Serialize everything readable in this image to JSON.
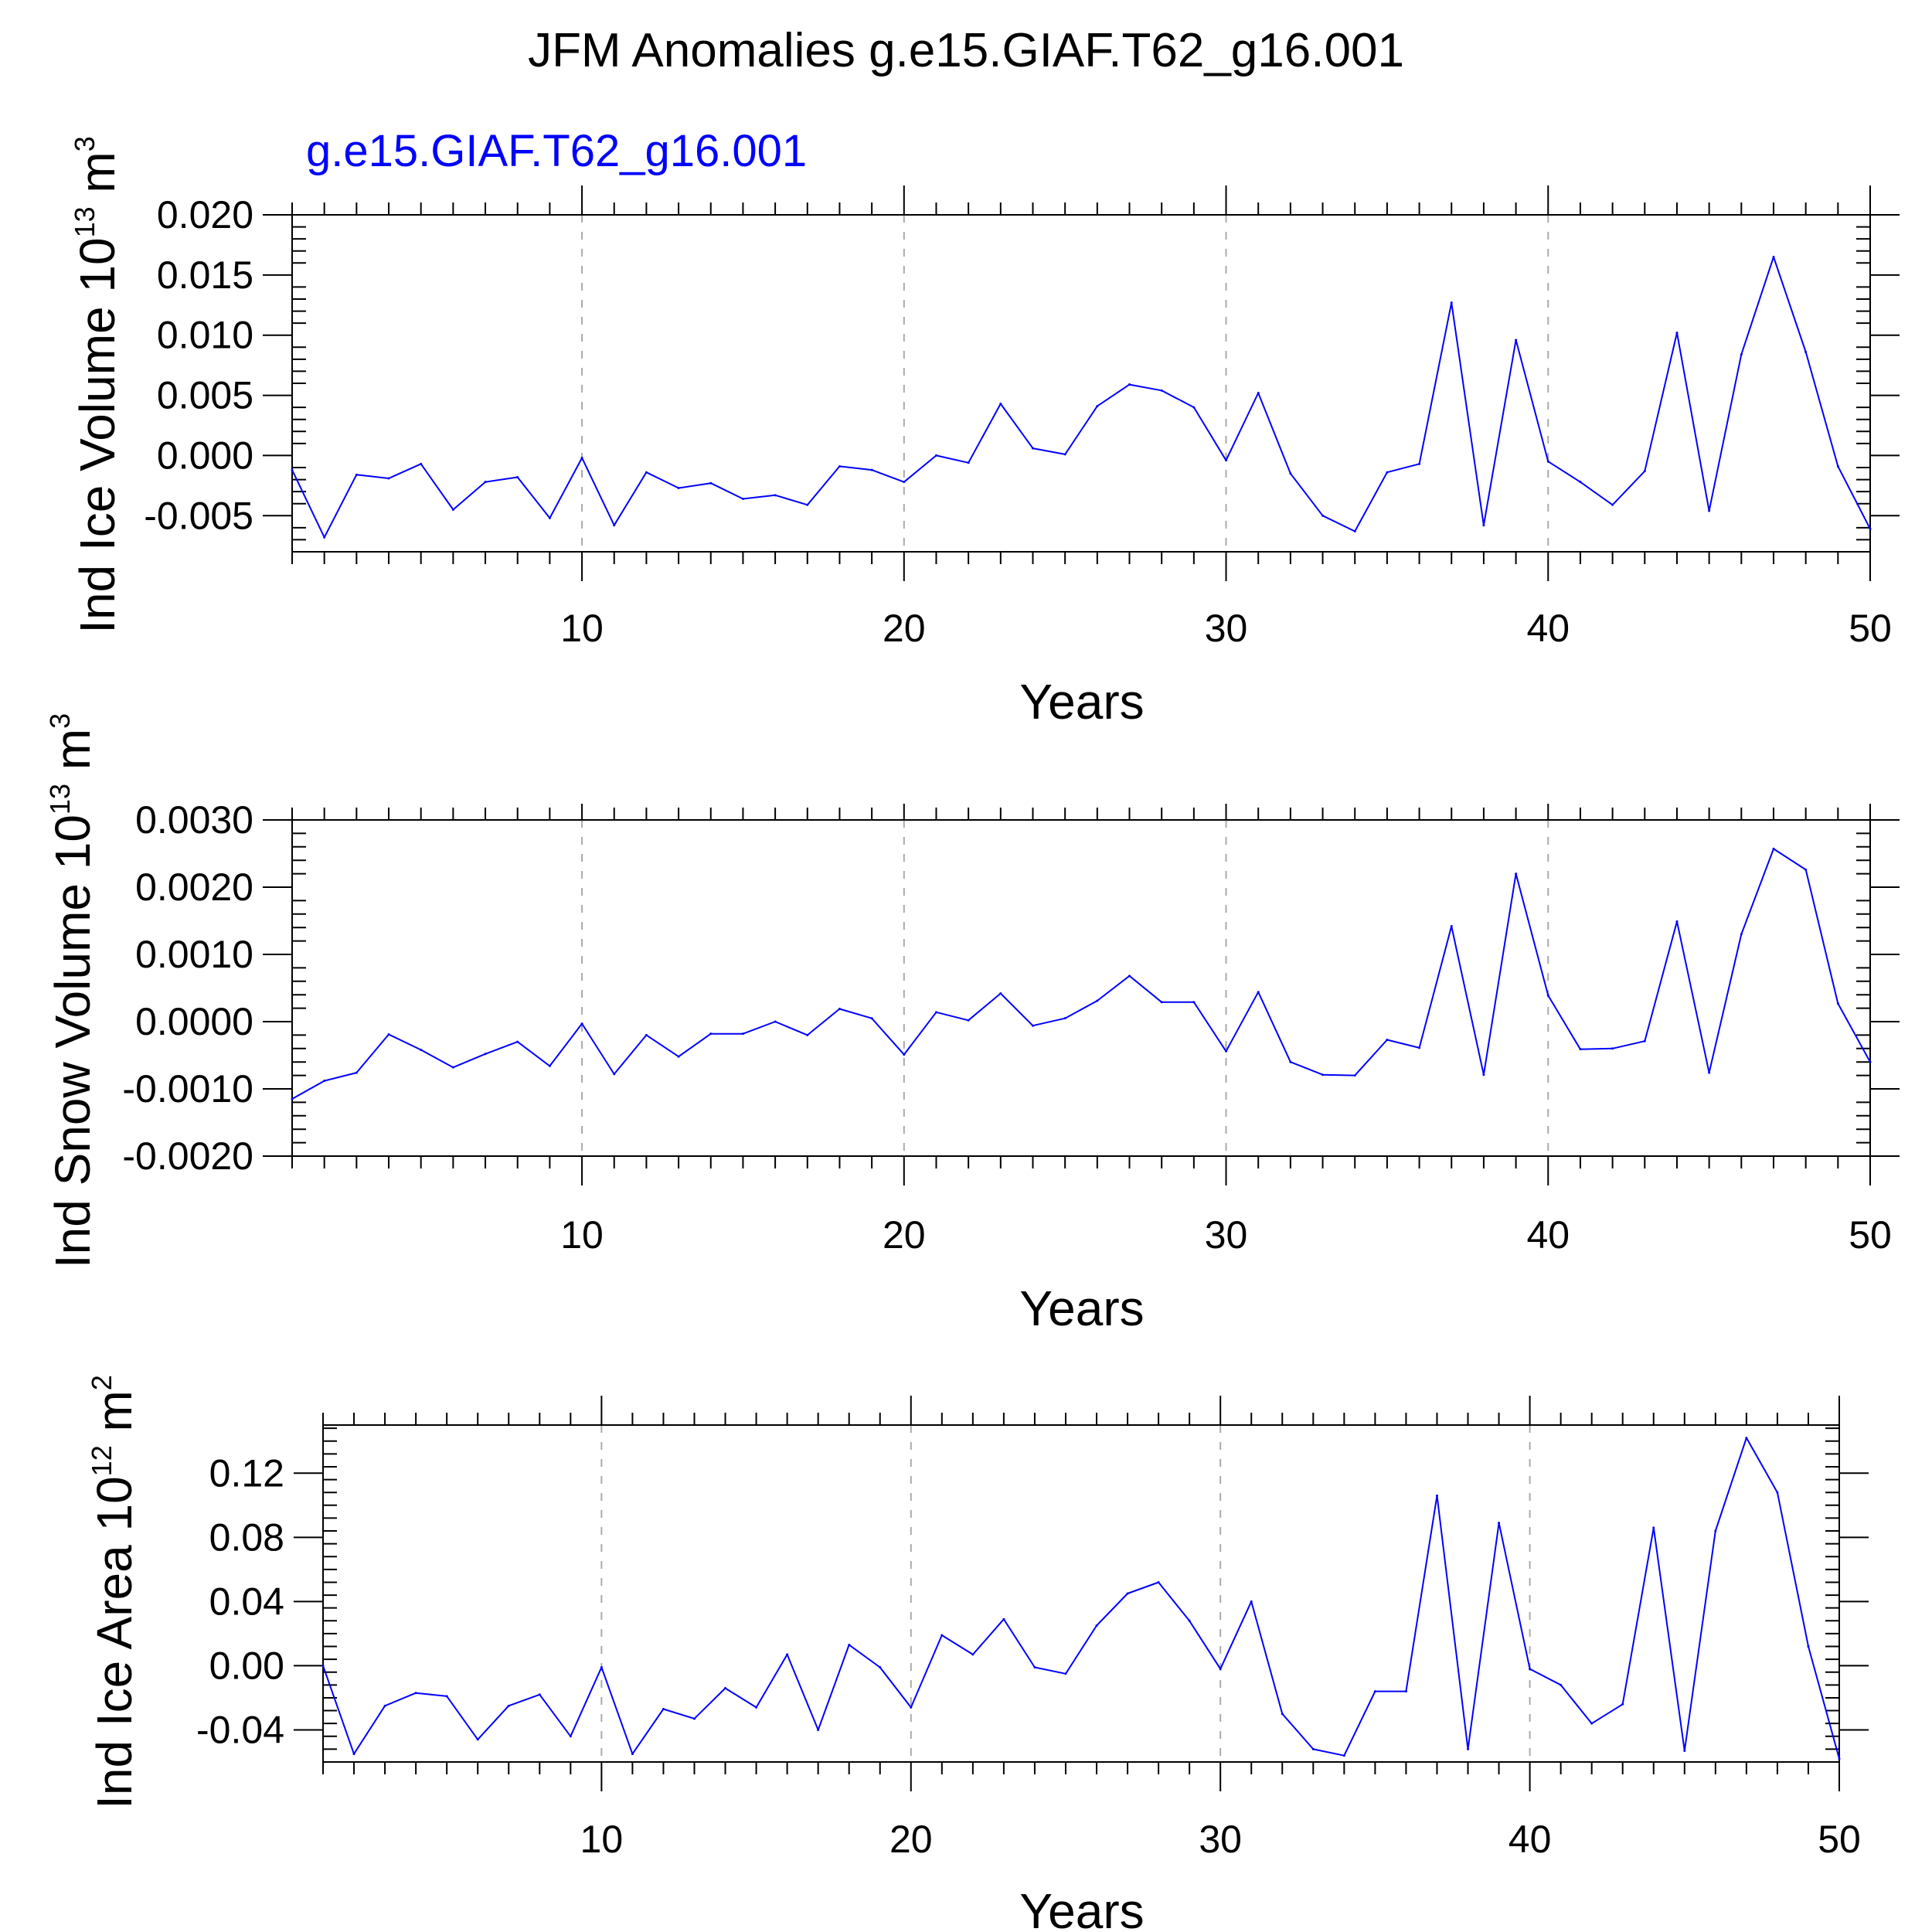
{
  "title": "JFM Anomalies g.e15.GIAF.T62_g16.001",
  "colors": {
    "line": "#0000ff",
    "subtitle": "#0000ff",
    "axis": "#000000",
    "grid": "#aaaaaa"
  },
  "panels": [
    {
      "subtitle": "g.e15.GIAF.T62_g16.001",
      "ylabel_main": "Ind Ice Volume 10",
      "ylabel_exp": "13",
      "ylabel_unit": " m",
      "ylabel_unit_exp": "3",
      "xlabel": "Years"
    },
    {
      "subtitle": "",
      "ylabel_main": "Ind Snow Volume 10",
      "ylabel_exp": "13",
      "ylabel_unit": " m",
      "ylabel_unit_exp": "3",
      "xlabel": "Years"
    },
    {
      "subtitle": "",
      "ylabel_main": "Ind Ice Area 10",
      "ylabel_exp": "12",
      "ylabel_unit": " m",
      "ylabel_unit_exp": "2",
      "xlabel": "Years"
    }
  ],
  "chart_data": [
    {
      "type": "line",
      "title": "g.e15.GIAF.T62_g16.001",
      "xlabel": "Years",
      "ylabel": "Ind Ice Volume 10^13 m^3",
      "xlim": [
        1,
        50
      ],
      "ylim": [
        -0.008,
        0.02
      ],
      "xticks": [
        10,
        20,
        30,
        40,
        50
      ],
      "yticks": [
        -0.005,
        0.0,
        0.005,
        0.01,
        0.015,
        0.02
      ],
      "ytick_labels": [
        "-0.005",
        "0.000",
        "0.005",
        "0.010",
        "0.015",
        "0.020"
      ],
      "grid": "vertical dashed at x ticks",
      "x": [
        1,
        2,
        3,
        4,
        5,
        6,
        7,
        8,
        9,
        10,
        11,
        12,
        13,
        14,
        15,
        16,
        17,
        18,
        19,
        20,
        21,
        22,
        23,
        24,
        25,
        26,
        27,
        28,
        29,
        30,
        31,
        32,
        33,
        34,
        35,
        36,
        37,
        38,
        39,
        40,
        41,
        42,
        43,
        44,
        45,
        46,
        47,
        48,
        49,
        50
      ],
      "values": [
        -0.0012,
        -0.0068,
        -0.0016,
        -0.0019,
        -0.0007,
        -0.0045,
        -0.0022,
        -0.0018,
        -0.0052,
        -0.0002,
        -0.0058,
        -0.0014,
        -0.0027,
        -0.0023,
        -0.0036,
        -0.0033,
        -0.0041,
        -0.0009,
        -0.0012,
        -0.0022,
        0.0,
        -0.0006,
        0.0043,
        0.0006,
        0.0001,
        0.0041,
        0.0059,
        0.0054,
        0.004,
        -0.0004,
        0.0052,
        -0.0015,
        -0.005,
        -0.0063,
        -0.0014,
        -0.0007,
        0.0127,
        -0.0058,
        0.0096,
        -0.0005,
        -0.0022,
        -0.0041,
        -0.0013,
        0.0102,
        -0.0046,
        0.0084,
        0.0165,
        0.0086,
        -0.0009,
        -0.0061
      ]
    },
    {
      "type": "line",
      "xlabel": "Years",
      "ylabel": "Ind Snow Volume 10^13 m^3",
      "xlim": [
        1,
        50
      ],
      "ylim": [
        -0.002,
        0.003
      ],
      "xticks": [
        10,
        20,
        30,
        40,
        50
      ],
      "yticks": [
        -0.002,
        -0.001,
        0.0,
        0.001,
        0.002,
        0.003
      ],
      "ytick_labels": [
        "-0.0020",
        "-0.0010",
        "0.0000",
        "0.0010",
        "0.0020",
        "0.0030"
      ],
      "grid": "vertical dashed at x ticks",
      "x": [
        1,
        2,
        3,
        4,
        5,
        6,
        7,
        8,
        9,
        10,
        11,
        12,
        13,
        14,
        15,
        16,
        17,
        18,
        19,
        20,
        21,
        22,
        23,
        24,
        25,
        26,
        27,
        28,
        29,
        30,
        31,
        32,
        33,
        34,
        35,
        36,
        37,
        38,
        39,
        40,
        41,
        42,
        43,
        44,
        45,
        46,
        47,
        48,
        49,
        50
      ],
      "values": [
        -0.00115,
        -0.00088,
        -0.00076,
        -0.00019,
        -0.00042,
        -0.00068,
        -0.00048,
        -0.0003,
        -0.00066,
        -3e-05,
        -0.00078,
        -0.0002,
        -0.00052,
        -0.00018,
        -0.00018,
        0.0,
        -0.0002,
        0.00019,
        5e-05,
        -0.00049,
        0.00014,
        2e-05,
        0.00042,
        -6e-05,
        5e-05,
        0.00031,
        0.00068,
        0.00029,
        0.00029,
        -0.00044,
        0.00044,
        -0.0006,
        -0.00079,
        -0.0008,
        -0.00027,
        -0.00039,
        0.00142,
        -0.00079,
        0.0022,
        0.00039,
        -0.00041,
        -0.0004,
        -0.00029,
        0.00149,
        -0.00076,
        0.0013,
        0.00257,
        0.00226,
        0.00027,
        -0.0006
      ]
    },
    {
      "type": "line",
      "xlabel": "Years",
      "ylabel": "Ind Ice Area 10^12 m^2",
      "xlim": [
        1,
        50
      ],
      "ylim": [
        -0.06,
        0.15
      ],
      "xticks": [
        10,
        20,
        30,
        40,
        50
      ],
      "yticks": [
        -0.04,
        0.0,
        0.04,
        0.08,
        0.12
      ],
      "ytick_labels": [
        "-0.04",
        "0.00",
        "0.04",
        "0.08",
        "0.12"
      ],
      "grid": "vertical dashed at x ticks",
      "x": [
        1,
        2,
        3,
        4,
        5,
        6,
        7,
        8,
        9,
        10,
        11,
        12,
        13,
        14,
        15,
        16,
        17,
        18,
        19,
        20,
        21,
        22,
        23,
        24,
        25,
        26,
        27,
        28,
        29,
        30,
        31,
        32,
        33,
        34,
        35,
        36,
        37,
        38,
        39,
        40,
        41,
        42,
        43,
        44,
        45,
        46,
        47,
        48,
        49,
        50
      ],
      "values": [
        0.0,
        -0.055,
        -0.025,
        -0.017,
        -0.019,
        -0.046,
        -0.025,
        -0.018,
        -0.044,
        -0.001,
        -0.055,
        -0.027,
        -0.033,
        -0.014,
        -0.026,
        0.007,
        -0.04,
        0.013,
        -0.001,
        -0.026,
        0.019,
        0.007,
        0.029,
        -0.001,
        -0.005,
        0.025,
        0.045,
        0.052,
        0.028,
        -0.002,
        0.04,
        -0.03,
        -0.052,
        -0.056,
        -0.016,
        -0.016,
        0.106,
        -0.052,
        0.089,
        -0.002,
        -0.012,
        -0.036,
        -0.024,
        0.086,
        -0.053,
        0.084,
        0.142,
        0.108,
        0.012,
        -0.058
      ]
    }
  ]
}
